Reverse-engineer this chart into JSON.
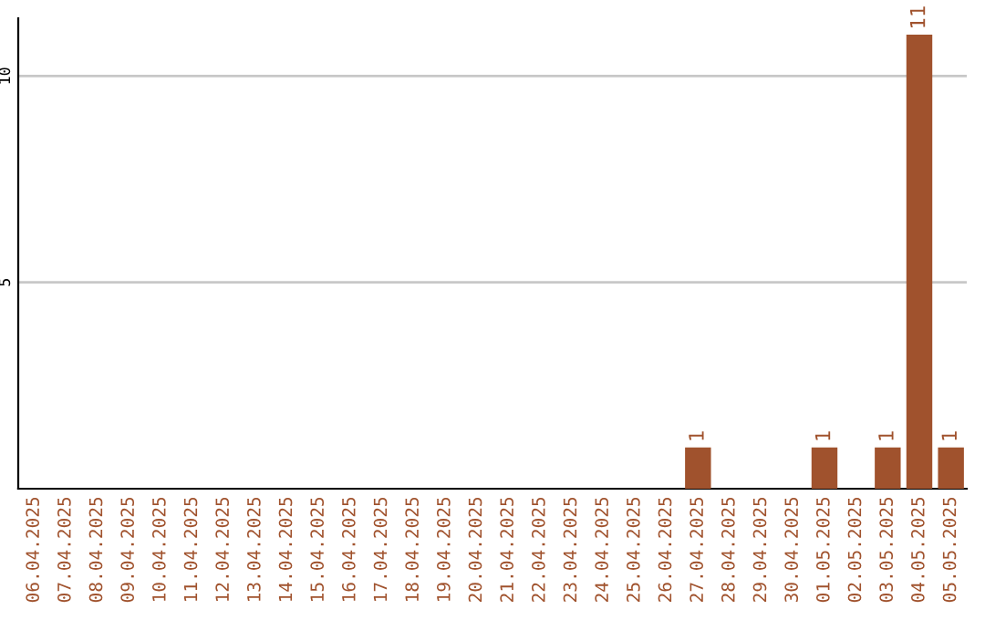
{
  "chart_data": {
    "type": "bar",
    "categories": [
      "06.04.2025",
      "07.04.2025",
      "08.04.2025",
      "09.04.2025",
      "10.04.2025",
      "11.04.2025",
      "12.04.2025",
      "13.04.2025",
      "14.04.2025",
      "15.04.2025",
      "16.04.2025",
      "17.04.2025",
      "18.04.2025",
      "19.04.2025",
      "20.04.2025",
      "21.04.2025",
      "22.04.2025",
      "23.04.2025",
      "24.04.2025",
      "25.04.2025",
      "26.04.2025",
      "27.04.2025",
      "28.04.2025",
      "29.04.2025",
      "30.04.2025",
      "01.05.2025",
      "02.05.2025",
      "03.05.2025",
      "04.05.2025",
      "05.05.2025"
    ],
    "values": [
      0,
      0,
      0,
      0,
      0,
      0,
      0,
      0,
      0,
      0,
      0,
      0,
      0,
      0,
      0,
      0,
      0,
      0,
      0,
      0,
      0,
      1,
      0,
      0,
      0,
      1,
      0,
      1,
      11,
      1
    ],
    "value_labels": [
      null,
      null,
      null,
      null,
      null,
      null,
      null,
      null,
      null,
      null,
      null,
      null,
      null,
      null,
      null,
      null,
      null,
      null,
      null,
      null,
      null,
      "1",
      null,
      null,
      null,
      "1",
      null,
      "1",
      "11",
      "1"
    ],
    "color": "#a0522d",
    "ylim": [
      0,
      11.4
    ],
    "yticks": [
      5,
      10
    ],
    "grid": "y"
  }
}
